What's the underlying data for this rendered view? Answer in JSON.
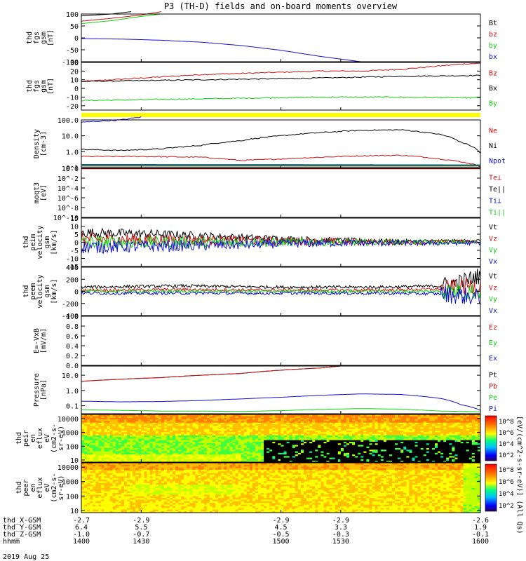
{
  "title": "P3 (TH-D) fields and on-board moments overview",
  "date_label": "2019 Aug 25",
  "colors": {
    "black": "#000000",
    "red": "#d01010",
    "green": "#10d010",
    "blue": "#1010d0",
    "yellow": "#ffff00"
  },
  "chart_data": [
    {
      "type": "line",
      "ylabel": [
        "thd",
        "fgs",
        "gsm",
        "[nT]"
      ],
      "ylim": [
        -100,
        100
      ],
      "yticks": [
        -100,
        -50,
        0,
        50,
        100
      ],
      "series": [
        {
          "name": "Bt",
          "color": "black",
          "x": [
            1400,
            1415,
            1425
          ],
          "y": [
            92,
            100,
            110
          ]
        },
        {
          "name": "bz",
          "color": "red",
          "x": [
            1400,
            1415,
            1430,
            1440
          ],
          "y": [
            70,
            82,
            96,
            110
          ]
        },
        {
          "name": "by",
          "color": "green",
          "x": [
            1400,
            1415,
            1430,
            1440
          ],
          "y": [
            60,
            72,
            90,
            100
          ]
        },
        {
          "name": "bx",
          "color": "blue",
          "x": [
            1400,
            1420,
            1440,
            1460,
            1480,
            1500,
            1520,
            1540
          ],
          "y": [
            -3,
            -5,
            -10,
            -18,
            -32,
            -52,
            -78,
            -100
          ]
        }
      ]
    },
    {
      "type": "line",
      "ylabel": [
        "thd",
        "fgs",
        "gsm",
        "[nT]"
      ],
      "ylim": [
        -25,
        30
      ],
      "yticks": [
        -20,
        -10,
        0,
        10,
        20,
        30
      ],
      "series": [
        {
          "name": "Bz",
          "color": "red",
          "x": [
            1400,
            1430,
            1460,
            1490,
            1520,
            1540,
            1560,
            1575,
            1590,
            1600
          ],
          "y": [
            8,
            12,
            16,
            18,
            20,
            20,
            22,
            25,
            28,
            29
          ]
        },
        {
          "name": "Bx",
          "color": "black",
          "x": [
            1400,
            1430,
            1460,
            1490,
            1520,
            1560,
            1600
          ],
          "y": [
            8,
            9,
            10,
            11,
            12,
            14,
            15
          ]
        },
        {
          "name": "By",
          "color": "green",
          "x": [
            1400,
            1430,
            1460,
            1490,
            1520,
            1560,
            1600
          ],
          "y": [
            -14,
            -13,
            -12,
            -11,
            -10,
            -10,
            -11
          ]
        }
      ]
    },
    {
      "type": "flag_bar",
      "color": "yellow"
    },
    {
      "type": "line",
      "ylabel": [
        "Density",
        "[cm-3]"
      ],
      "scale": "log",
      "ylim": [
        0.1,
        100
      ],
      "ytick_values": [
        0.1,
        1,
        10,
        100
      ],
      "yticks": [
        "0.1",
        "1.0",
        "10.0",
        "100.0"
      ],
      "series": [
        {
          "name": "Ne",
          "color": "red",
          "x": [
            1400,
            1430,
            1460,
            1480,
            1500,
            1520,
            1540,
            1560,
            1580,
            1600
          ],
          "y": [
            0.5,
            0.5,
            0.45,
            0.28,
            0.35,
            0.45,
            0.55,
            0.6,
            0.35,
            0.12
          ]
        },
        {
          "name": "Ni",
          "color": "black",
          "x": [
            1400,
            1420,
            1440,
            1460,
            1480,
            1500,
            1520,
            1540,
            1560,
            1580,
            1590,
            1600
          ],
          "y": [
            1.4,
            1.2,
            1.5,
            2.5,
            5,
            10,
            16,
            22,
            24,
            12,
            4,
            0.8
          ]
        },
        {
          "name": "Npot",
          "color": "blue",
          "x": [
            1400,
            1420,
            1430
          ],
          "y": [
            70,
            100,
            150
          ]
        }
      ]
    },
    {
      "type": "line",
      "ylabel": [
        "moqt3",
        "[eV]"
      ],
      "scale": "log",
      "ytick_values": [
        1e-10,
        1e-08,
        1e-06,
        0.0001,
        0.01,
        1
      ],
      "yticks": [
        "10^-10",
        "10^-8",
        "10^-6",
        "10^-4",
        "10^-2",
        "10^0"
      ],
      "series": [
        {
          "name": "Te⊥",
          "color": "red",
          "x": [
            1400,
            1600
          ],
          "y": [
            0.8,
            0.8
          ]
        },
        {
          "name": "Te||",
          "color": "black",
          "x": [
            1400,
            1600
          ],
          "y": [
            3,
            3
          ]
        },
        {
          "name": "Ti⊥",
          "color": "blue",
          "x": [
            1400,
            1600
          ],
          "y": [
            6,
            5
          ]
        },
        {
          "name": "Ti||",
          "color": "green",
          "x": [
            1400,
            1600
          ],
          "y": [
            4,
            4
          ]
        }
      ]
    },
    {
      "type": "line",
      "ylabel": [
        "thd",
        "peim",
        "velocity",
        "gsm",
        "[km/s]"
      ],
      "ylim": [
        -15,
        15
      ],
      "yticks": [
        -15,
        -10,
        -5,
        0,
        5,
        10,
        15
      ],
      "series": [
        {
          "name": "Vt",
          "color": "black",
          "x": [
            1400,
            1440,
            1480,
            1520,
            1560,
            1600
          ],
          "y": [
            6,
            5,
            3,
            1.5,
            0.5,
            1
          ]
        },
        {
          "name": "Vz",
          "color": "red",
          "x": [
            1400,
            1440,
            1480,
            1520,
            1560,
            1600
          ],
          "y": [
            2,
            1.5,
            1,
            0.5,
            0,
            0.5
          ]
        },
        {
          "name": "Vy",
          "color": "green",
          "x": [
            1400,
            1440,
            1480,
            1520,
            1560,
            1600
          ],
          "y": [
            0,
            0,
            0,
            0,
            0,
            0
          ]
        },
        {
          "name": "Vx",
          "color": "blue",
          "x": [
            1400,
            1440,
            1480,
            1520,
            1560,
            1600
          ],
          "y": [
            -3,
            -2.5,
            -1.5,
            -0.5,
            -0.5,
            -0.5
          ]
        }
      ]
    },
    {
      "type": "line",
      "ylabel": [
        "thd",
        "peem",
        "velocity",
        "gsm",
        "[km/s]"
      ],
      "ylim": [
        -400,
        400
      ],
      "yticks": [
        -400,
        -200,
        0,
        200,
        400
      ],
      "series": [
        {
          "name": "Vt",
          "color": "black",
          "x": [
            1400,
            1450,
            1500,
            1550,
            1580,
            1590,
            1600
          ],
          "y": [
            70,
            90,
            70,
            70,
            90,
            150,
            260
          ]
        },
        {
          "name": "Vz",
          "color": "red",
          "x": [
            1400,
            1450,
            1500,
            1550,
            1580,
            1600
          ],
          "y": [
            20,
            30,
            20,
            20,
            40,
            100
          ]
        },
        {
          "name": "Vy",
          "color": "green",
          "x": [
            1400,
            1450,
            1500,
            1550,
            1600
          ],
          "y": [
            0,
            0,
            0,
            0,
            0
          ]
        },
        {
          "name": "Vx",
          "color": "blue",
          "x": [
            1400,
            1450,
            1500,
            1550,
            1580,
            1600
          ],
          "y": [
            -30,
            -30,
            -30,
            -30,
            -40,
            -100
          ]
        }
      ]
    },
    {
      "type": "line",
      "ylabel": [
        "E=-VxB",
        "[mV/m]"
      ],
      "ylim": [
        0,
        1
      ],
      "yticks": [
        "0.0",
        "0.2",
        "0.4",
        "0.6",
        "0.8",
        "1.0"
      ],
      "series": [
        {
          "name": "Ez",
          "color": "red",
          "x": [],
          "y": []
        },
        {
          "name": "Ey",
          "color": "green",
          "x": [],
          "y": []
        },
        {
          "name": "Ex",
          "color": "blue",
          "x": [],
          "y": []
        }
      ]
    },
    {
      "type": "line",
      "ylabel": [
        "Pressure",
        "[nPa]"
      ],
      "scale": "log",
      "ylim": [
        0.03,
        40
      ],
      "ytick_values": [
        0.1,
        1,
        10
      ],
      "yticks": [
        "0.1",
        "1.0",
        "10.0"
      ],
      "series": [
        {
          "name": "Pt",
          "color": "black",
          "x": [
            1400,
            1440,
            1480,
            1520,
            1530
          ],
          "y": [
            4,
            7,
            13,
            30,
            40
          ]
        },
        {
          "name": "Pb",
          "color": "red",
          "x": [
            1400,
            1440,
            1480,
            1520,
            1530
          ],
          "y": [
            4,
            7,
            13,
            30,
            40
          ]
        },
        {
          "name": "Pe",
          "color": "green",
          "x": [
            1400,
            1420,
            1440,
            1460,
            1480,
            1500,
            1520,
            1540,
            1560,
            1580,
            1600
          ],
          "y": [
            0.055,
            0.05,
            0.045,
            0.045,
            0.042,
            0.048,
            0.058,
            0.065,
            0.06,
            0.045,
            0.04
          ]
        },
        {
          "name": "Pi",
          "color": "blue",
          "x": [
            1400,
            1420,
            1440,
            1460,
            1480,
            1500,
            1520,
            1540,
            1560,
            1580,
            1590,
            1600
          ],
          "y": [
            0.2,
            0.18,
            0.19,
            0.22,
            0.28,
            0.36,
            0.48,
            0.6,
            0.55,
            0.3,
            0.12,
            0.05
          ]
        }
      ]
    },
    {
      "type": "heatmap",
      "ylabel": [
        "thd",
        "peir",
        "en",
        "eflux",
        "eV",
        "(cm2-s-",
        "sr-eV)"
      ],
      "scale": "log",
      "ylim": [
        7,
        20000
      ],
      "ytick_values": [
        10,
        100,
        1000,
        10000
      ],
      "yticks": [
        "10",
        "100",
        "1000",
        "10000"
      ],
      "colorbar": {
        "label": "[eV/(cm^2-s-sr-eV)] (All Qs)",
        "ticks": [
          "10^8",
          "10^6",
          "10^4",
          "10^2"
        ]
      },
      "description_values": {
        "high_energy_flux": "high",
        "low_energy_after_1500": "empty"
      }
    },
    {
      "type": "heatmap",
      "ylabel": [
        "thd",
        "peer",
        "en",
        "eflux",
        "eV",
        "(cm2-s-",
        "sr-eV)"
      ],
      "scale": "log",
      "ylim": [
        7,
        20000
      ],
      "ytick_values": [
        10,
        100,
        1000,
        10000
      ],
      "yticks": [
        "10",
        "100",
        "1000",
        "10000"
      ],
      "colorbar": {
        "label": "[eV/(cm^2-s-sr-eV)]",
        "ticks": [
          "10^8",
          "10^6",
          "10^4",
          "10^2"
        ]
      }
    }
  ],
  "x_axis": {
    "range": [
      1400,
      1600
    ],
    "ticks": [
      1400,
      1430,
      1500,
      1530,
      1600
    ],
    "row_labels": [
      "thd_X-GSM",
      "thd_Y-GSM",
      "thd_Z-GSM",
      "hhmm"
    ],
    "rows": [
      [
        "-2.7",
        "-2.9",
        "-2.9",
        "-2.9",
        "-2.6"
      ],
      [
        "6.4",
        "5.5",
        "4.5",
        "3.3",
        "1.9"
      ],
      [
        "-1.0",
        "-0.7",
        "-0.5",
        "-0.3",
        "-0.1"
      ],
      [
        "1400",
        "1430",
        "1500",
        "1530",
        "1600"
      ]
    ]
  }
}
